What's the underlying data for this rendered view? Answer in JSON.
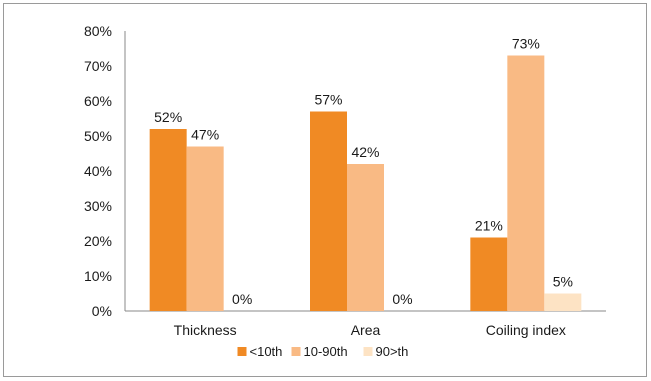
{
  "chart_data": {
    "type": "bar",
    "categories": [
      "Thickness",
      "Area",
      "Coiling index"
    ],
    "series": [
      {
        "name": "<10th",
        "values": [
          52,
          57,
          21
        ],
        "labels": [
          "52%",
          "57%",
          "21%"
        ],
        "color": "#f08a24"
      },
      {
        "name": "10-90th",
        "values": [
          47,
          42,
          73
        ],
        "labels": [
          "47%",
          "42%",
          "73%"
        ],
        "color": "#f9ba84"
      },
      {
        "name": "90>th",
        "values": [
          0,
          0,
          5
        ],
        "labels": [
          "0%",
          "0%",
          "5%"
        ],
        "color": "#fde3c4"
      }
    ],
    "yticks": [
      "0%",
      "10%",
      "20%",
      "30%",
      "40%",
      "50%",
      "60%",
      "70%",
      "80%"
    ],
    "ylim": [
      0,
      80
    ],
    "grid": false,
    "legend_position": "bottom"
  }
}
